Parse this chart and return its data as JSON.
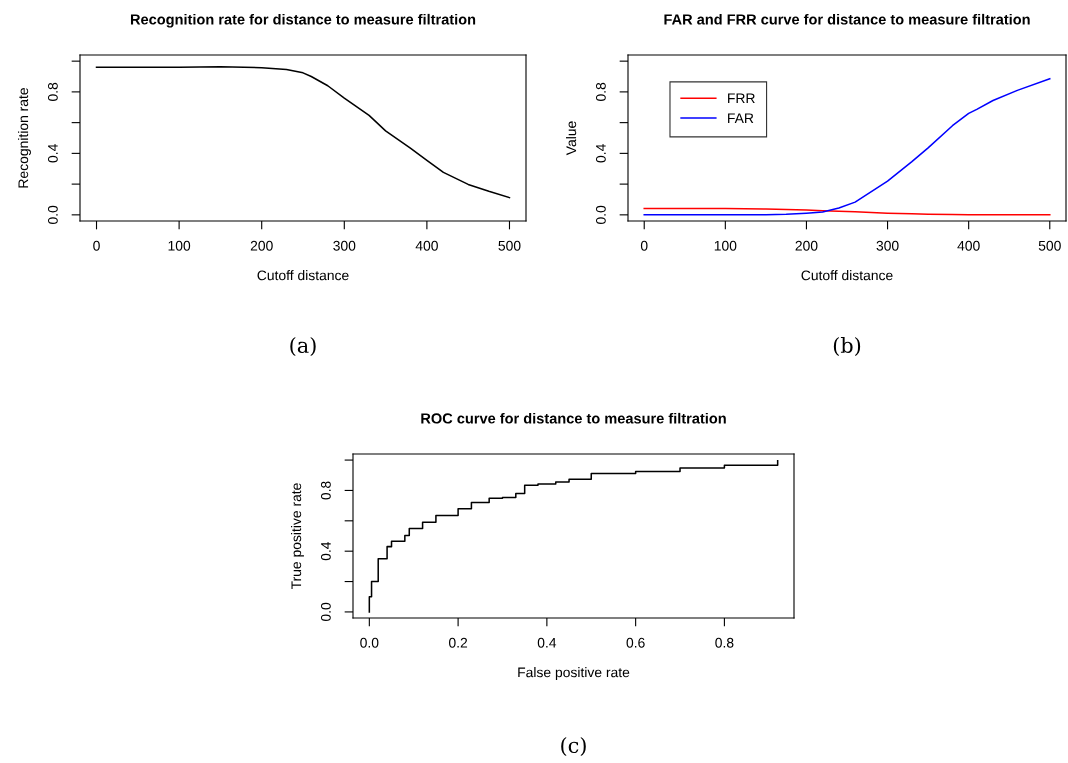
{
  "chart_data": [
    {
      "type": "line",
      "title": "Recognition rate for distance to measure filtration",
      "xlabel": "Cutoff distance",
      "ylabel": "Recognition rate",
      "annotations": [
        "(a)"
      ],
      "x": [
        0,
        50,
        100,
        150,
        200,
        230,
        250,
        260,
        280,
        300,
        330,
        350,
        380,
        400,
        420,
        450,
        475,
        500
      ],
      "series": [
        {
          "color": "#000000",
          "values": [
            0.96,
            0.96,
            0.96,
            0.964,
            0.957,
            0.945,
            0.924,
            0.9,
            0.84,
            0.76,
            0.647,
            0.546,
            0.434,
            0.355,
            0.276,
            0.198,
            0.153,
            0.112
          ]
        }
      ],
      "xlim": [
        -20,
        520
      ],
      "xticks": [
        0,
        100,
        200,
        300,
        400,
        500
      ],
      "ylim": [
        -0.04,
        1.04
      ],
      "yticks": [
        {
          "value": 0,
          "label": "0.0"
        },
        {
          "value": 0.2,
          "label": null
        },
        {
          "value": 0.4,
          "label": "0.4"
        },
        {
          "value": 0.6,
          "label": null
        },
        {
          "value": 0.8,
          "label": "0.8"
        },
        {
          "value": 1.0,
          "label": null
        }
      ],
      "grid": false,
      "legend": false,
      "line_style": "solid",
      "marker": "none"
    },
    {
      "type": "line",
      "title": "FAR and FRR curve for distance to measure filtration",
      "xlabel": "Cutoff distance",
      "ylabel": "Value",
      "annotations": [
        "(b)"
      ],
      "x": [
        0,
        100,
        150,
        175,
        200,
        220,
        240,
        260,
        300,
        330,
        350,
        380,
        400,
        410,
        430,
        460,
        500
      ],
      "series": [
        {
          "name": "FRR",
          "color": "#ff0000",
          "values": [
            0.042,
            0.042,
            0.038,
            0.035,
            0.031,
            0.027,
            0.023,
            0.02,
            0.011,
            0.007,
            0.004,
            0.002,
            0.001,
            0.001,
            0.001,
            0.0,
            0.0
          ]
        },
        {
          "name": "FAR",
          "color": "#0000ff",
          "values": [
            0.0,
            0.0,
            0.0,
            0.004,
            0.011,
            0.018,
            0.045,
            0.083,
            0.219,
            0.346,
            0.436,
            0.58,
            0.66,
            0.686,
            0.744,
            0.81,
            0.885
          ]
        }
      ],
      "xlim": [
        -20,
        520
      ],
      "xticks": [
        0,
        100,
        200,
        300,
        400,
        500
      ],
      "ylim": [
        -0.04,
        1.04
      ],
      "yticks": [
        {
          "value": 0,
          "label": "0.0"
        },
        {
          "value": 0.2,
          "label": null
        },
        {
          "value": 0.4,
          "label": "0.4"
        },
        {
          "value": 0.6,
          "label": null
        },
        {
          "value": 0.8,
          "label": "0.8"
        },
        {
          "value": 1.0,
          "label": null
        }
      ],
      "grid": false,
      "legend": "top left",
      "line_style": "solid",
      "marker": "none"
    },
    {
      "type": "step",
      "title": "ROC curve for distance to measure filtration",
      "xlabel": "False positive rate",
      "ylabel": "True positive rate",
      "annotations": [
        "(c)"
      ],
      "x": [
        0,
        0.0,
        0.005,
        0.02,
        0.04,
        0.05,
        0.08,
        0.09,
        0.12,
        0.15,
        0.2,
        0.23,
        0.27,
        0.3,
        0.33,
        0.35,
        0.38,
        0.42,
        0.45,
        0.5,
        0.6,
        0.7,
        0.8,
        0.92
      ],
      "series": [
        {
          "color": "#000000",
          "values": [
            0,
            0.1,
            0.2,
            0.35,
            0.43,
            0.465,
            0.503,
            0.55,
            0.59,
            0.635,
            0.68,
            0.72,
            0.748,
            0.753,
            0.78,
            0.834,
            0.843,
            0.855,
            0.873,
            0.912,
            0.925,
            0.948,
            0.966,
            0.995
          ]
        }
      ],
      "xlim": [
        -0.0368,
        0.9568
      ],
      "xticks": [
        {
          "value": 0,
          "label": "0.0"
        },
        0.2,
        0.4,
        0.6,
        0.8
      ],
      "ylim": [
        -0.04,
        1.04
      ],
      "yticks": [
        {
          "value": 0,
          "label": "0.0"
        },
        {
          "value": 0.2,
          "label": null
        },
        {
          "value": 0.4,
          "label": "0.4"
        },
        {
          "value": 0.6,
          "label": null
        },
        {
          "value": 0.8,
          "label": "0.8"
        },
        {
          "value": 1.0,
          "label": null
        }
      ],
      "grid": false,
      "legend": false,
      "line_style": "solid",
      "marker": "none"
    }
  ]
}
